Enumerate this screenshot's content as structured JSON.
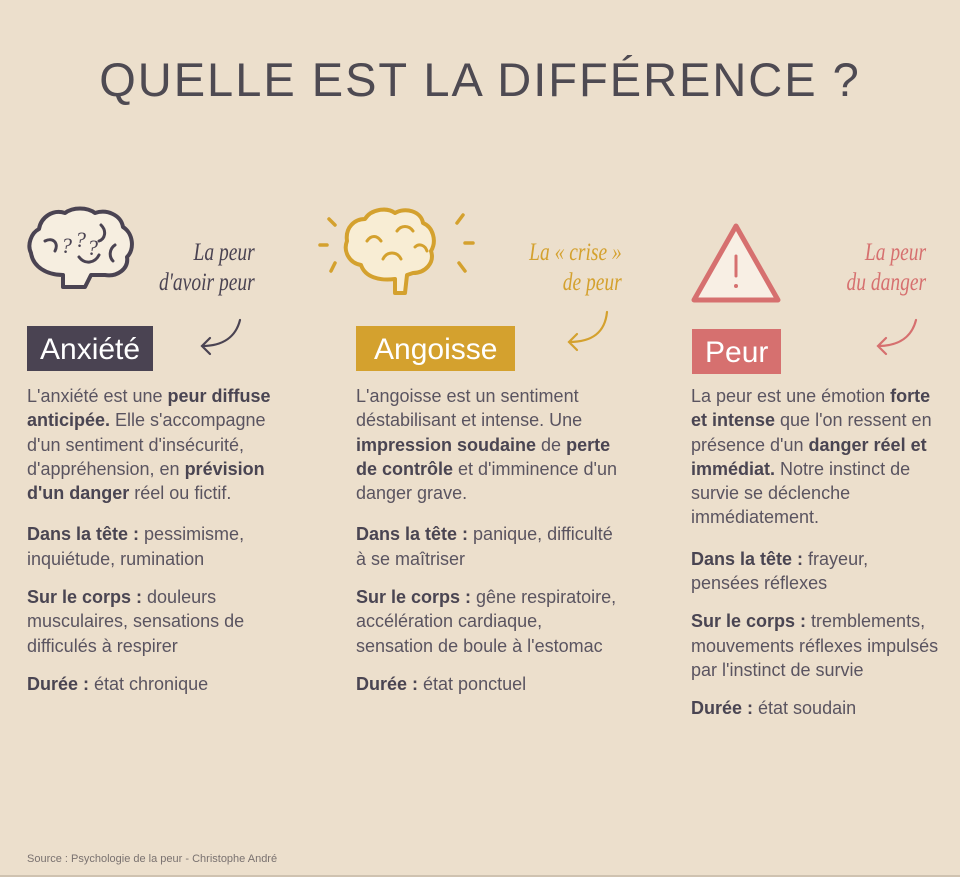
{
  "title": "QUELLE EST LA DIFFÉRENCE ?",
  "colors": {
    "background": "#ecdfcc",
    "anxiete": "#4a4352",
    "angoisse": "#d4a12e",
    "peur": "#d6706f",
    "text": "#5a5460"
  },
  "columns": [
    {
      "icon": "brain-question-icon",
      "caption": [
        "La peur",
        "d'avoir peur"
      ],
      "badge": "Anxiété",
      "desc": [
        {
          "t": "L'anxiété est une ",
          "b": false
        },
        {
          "t": "peur diffuse anticipée.",
          "b": true
        },
        {
          "t": " Elle s'accompagne d'un sentiment d'insécurité, d'appréhension, en ",
          "b": false
        },
        {
          "t": "prévision d'un danger",
          "b": true
        },
        {
          "t": " réel ou fictif.",
          "b": false
        }
      ],
      "sections": [
        {
          "label": "Dans la tête :",
          "text": " pessimisme, inquiétude, rumination"
        },
        {
          "label": "Sur le corps :",
          "text": " douleurs musculaires, sensations de difficulés à respirer"
        },
        {
          "label": "Durée :",
          "text": " état chronique"
        }
      ]
    },
    {
      "icon": "brain-sad-radiating-icon",
      "caption": [
        "La « crise »",
        "de peur"
      ],
      "badge": "Angoisse",
      "desc": [
        {
          "t": "L'angoisse est un sentiment déstabilisant et intense. Une ",
          "b": false
        },
        {
          "t": "impression soudaine",
          "b": true
        },
        {
          "t": " de ",
          "b": false
        },
        {
          "t": "perte de contrôle",
          "b": true
        },
        {
          "t": " et d'imminence d'un danger grave.",
          "b": false
        }
      ],
      "sections": [
        {
          "label": "Dans la tête :",
          "text": " panique, difficulté à se maîtriser"
        },
        {
          "label": "Sur le corps :",
          "text": " gêne respiratoire, accélération cardiaque, sensation de boule à l'estomac"
        },
        {
          "label": "Durée :",
          "text": " état ponctuel"
        }
      ]
    },
    {
      "icon": "warning-triangle-icon",
      "caption": [
        "La peur",
        "du danger"
      ],
      "badge": "Peur",
      "desc": [
        {
          "t": "La peur est une émotion ",
          "b": false
        },
        {
          "t": "forte et intense",
          "b": true
        },
        {
          "t": " que l'on ressent en présence d'un ",
          "b": false
        },
        {
          "t": "danger réel et immédiat.",
          "b": true
        },
        {
          "t": " Notre instinct de survie se déclenche immédiatement.",
          "b": false
        }
      ],
      "sections": [
        {
          "label": "Dans la tête :",
          "text": " frayeur, pensées réflexes"
        },
        {
          "label": "Sur le corps :",
          "text": " tremblements, mouvements réflexes impulsés par l'instinct de survie"
        },
        {
          "label": "Durée :",
          "text": " état soudain"
        }
      ]
    }
  ],
  "source": "Source : Psychologie de la peur - Christophe André"
}
